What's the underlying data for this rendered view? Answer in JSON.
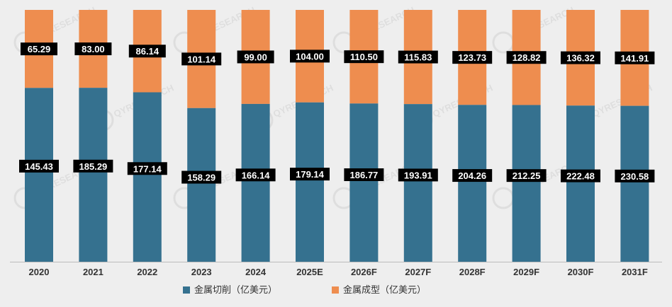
{
  "chart_data": {
    "type": "bar",
    "stacked": true,
    "stack_mode": "percent",
    "categories": [
      "2020",
      "2021",
      "2022",
      "2023",
      "2024",
      "2025E",
      "2026F",
      "2027F",
      "2028F",
      "2029F",
      "2030F",
      "2031F"
    ],
    "series": [
      {
        "name": "金属切削（亿美元）",
        "color": "#35718f",
        "values": [
          145.43,
          185.29,
          177.14,
          158.29,
          166.14,
          179.14,
          186.77,
          193.91,
          204.26,
          212.25,
          222.48,
          230.58
        ],
        "labels": [
          "145.43",
          "185.29",
          "177.14",
          "158.29",
          "166.14",
          "179.14",
          "186.77",
          "193.91",
          "204.26",
          "212.25",
          "222.48",
          "230.58"
        ]
      },
      {
        "name": "金属成型（亿美元）",
        "color": "#ee8d4f",
        "values": [
          65.29,
          83.0,
          86.14,
          101.14,
          99.0,
          104.0,
          110.5,
          115.83,
          123.73,
          128.82,
          136.32,
          141.91
        ],
        "labels": [
          "65.29",
          "83.00",
          "86.14",
          "101.14",
          "99.00",
          "104.00",
          "110.50",
          "115.83",
          "123.73",
          "128.82",
          "136.32",
          "141.91"
        ]
      }
    ],
    "legend_position": "bottom",
    "title": "",
    "xlabel": "",
    "ylabel": "",
    "grid": false
  },
  "watermark_text": "QYRESEARCH"
}
